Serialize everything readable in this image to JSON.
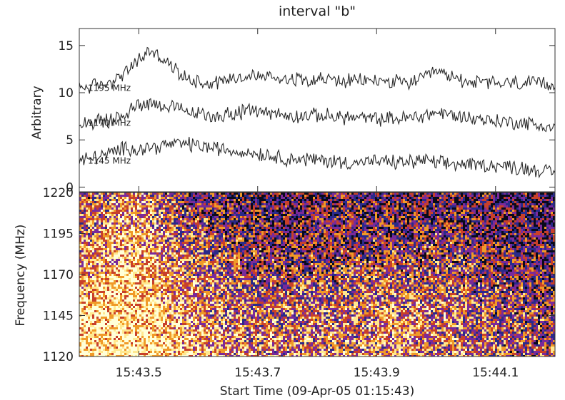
{
  "chart_data": [
    {
      "type": "line",
      "title": "interval \"b\"",
      "ylabel": "Arbitrary",
      "xlabel": "",
      "ylim": [
        -0.5,
        16.8
      ],
      "yticks": [
        "0",
        "5",
        "10",
        "15"
      ],
      "xlim": [
        15.4,
        16.2
      ],
      "x_unit": "seconds after 15:43:00",
      "series": [
        {
          "name": "1195 MHz",
          "x": [
            15.4,
            15.45,
            15.48,
            15.5,
            15.52,
            15.55,
            15.58,
            15.62,
            15.66,
            15.7,
            15.75,
            15.8,
            15.85,
            15.9,
            15.95,
            15.98,
            16.0,
            16.05,
            16.1,
            16.15,
            16.2
          ],
          "y": [
            10.5,
            11.0,
            12.2,
            13.5,
            14.5,
            13.0,
            11.5,
            11.0,
            11.6,
            11.8,
            11.5,
            11.5,
            11.2,
            11.3,
            11.0,
            11.5,
            12.2,
            11.2,
            11.0,
            11.0,
            10.8
          ]
        },
        {
          "name": "1170 MHz",
          "x": [
            15.4,
            15.45,
            15.48,
            15.5,
            15.52,
            15.55,
            15.58,
            15.62,
            15.66,
            15.7,
            15.75,
            15.8,
            15.85,
            15.9,
            15.95,
            15.98,
            16.0,
            16.05,
            16.1,
            16.15,
            16.2
          ],
          "y": [
            6.8,
            7.0,
            7.8,
            8.8,
            9.0,
            8.5,
            8.0,
            7.5,
            7.8,
            8.2,
            7.5,
            7.6,
            7.4,
            7.2,
            7.3,
            7.6,
            7.9,
            7.4,
            7.0,
            6.8,
            6.2
          ]
        },
        {
          "name": "1145 MHz",
          "x": [
            15.4,
            15.45,
            15.48,
            15.5,
            15.52,
            15.55,
            15.58,
            15.62,
            15.66,
            15.7,
            15.75,
            15.8,
            15.85,
            15.9,
            15.95,
            15.98,
            16.0,
            16.05,
            16.1,
            16.15,
            16.2
          ],
          "y": [
            2.8,
            3.5,
            4.2,
            4.0,
            4.2,
            4.5,
            4.6,
            4.2,
            3.8,
            3.6,
            3.0,
            2.9,
            2.6,
            2.7,
            2.6,
            2.9,
            2.5,
            2.4,
            2.3,
            2.0,
            1.5
          ]
        }
      ]
    },
    {
      "type": "heatmap",
      "title": "",
      "ylabel": "Frequency (MHz)",
      "xlabel": "Start Time (09-Apr-05 01:15:43)",
      "ylim": [
        1120,
        1220
      ],
      "yticks": [
        "1120",
        "1145",
        "1170",
        "1195",
        "1220"
      ],
      "xlim": [
        15.4,
        16.2
      ],
      "xticks": [
        {
          "x": 15.5,
          "label": "15:43.5"
        },
        {
          "x": 15.7,
          "label": "15:43.7"
        },
        {
          "x": 15.9,
          "label": "15:43.9"
        },
        {
          "x": 16.1,
          "label": "15:44.1"
        }
      ],
      "colormap": [
        "#0a0a1a",
        "#2a2a8a",
        "#7a2a9a",
        "#c8402a",
        "#f09a28",
        "#ffe890",
        "#ffffd8"
      ],
      "grid_cols": 10,
      "grid_rows": 4,
      "intensity_rows_low_to_high_freq": [
        [
          0.88,
          0.86,
          0.75,
          0.62,
          0.58,
          0.6,
          0.62,
          0.58,
          0.5,
          0.42
        ],
        [
          0.78,
          0.82,
          0.66,
          0.52,
          0.5,
          0.52,
          0.55,
          0.52,
          0.45,
          0.38
        ],
        [
          0.55,
          0.75,
          0.52,
          0.4,
          0.35,
          0.38,
          0.4,
          0.4,
          0.33,
          0.28
        ],
        [
          0.4,
          0.66,
          0.38,
          0.28,
          0.25,
          0.28,
          0.3,
          0.28,
          0.24,
          0.22
        ]
      ]
    }
  ]
}
